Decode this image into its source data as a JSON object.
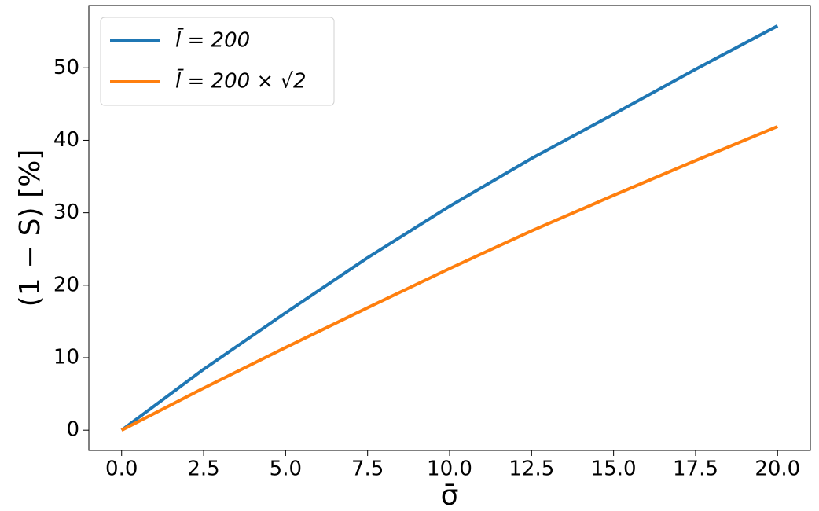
{
  "chart_data": {
    "type": "line",
    "xlabel": "σ̄",
    "ylabel": "(1 − S) [%]",
    "x": [
      0,
      2.5,
      5,
      7.5,
      10,
      12.5,
      15,
      17.5,
      20
    ],
    "series": [
      {
        "name": "l̄ = 200",
        "color": "#1f77b4",
        "values": [
          0,
          8.4,
          16.2,
          23.8,
          30.9,
          37.5,
          43.6,
          49.8,
          55.8
        ]
      },
      {
        "name": "l̄ = 200 × √2",
        "color": "#ff7f0e",
        "values": [
          0,
          5.8,
          11.4,
          16.9,
          22.3,
          27.5,
          32.4,
          37.2,
          41.9
        ]
      }
    ],
    "xlim": [
      -1,
      21
    ],
    "ylim": [
      -2.8,
      58.6
    ],
    "xticks": [
      {
        "value": 0,
        "label": "0.0"
      },
      {
        "value": 2.5,
        "label": "2.5"
      },
      {
        "value": 5,
        "label": "5.0"
      },
      {
        "value": 7.5,
        "label": "7.5"
      },
      {
        "value": 10,
        "label": "10.0"
      },
      {
        "value": 12.5,
        "label": "12.5"
      },
      {
        "value": 15,
        "label": "15.0"
      },
      {
        "value": 17.5,
        "label": "17.5"
      },
      {
        "value": 20,
        "label": "20.0"
      }
    ],
    "yticks": [
      0,
      10,
      20,
      30,
      40,
      50
    ],
    "grid": false,
    "legend": "upper left"
  }
}
